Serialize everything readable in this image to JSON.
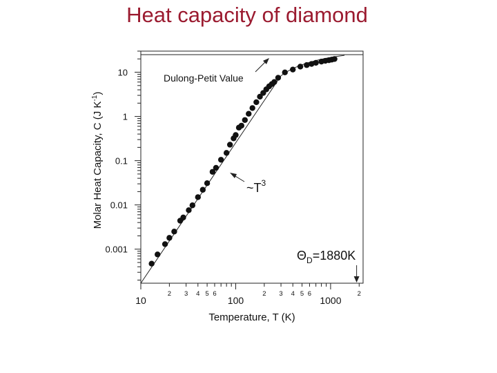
{
  "page": {
    "title": "Heat capacity of diamond"
  },
  "chart_data": {
    "type": "scatter",
    "title": "",
    "xlabel": "Temperature, T (K)",
    "ylabel": "Molar Heat Capacity, C  (J K-1)",
    "ylabel_parts": {
      "main": "Molar Heat Capacity, C  (J K",
      "sup": "-1",
      "close": ")"
    },
    "x_scale": "log",
    "y_scale": "log",
    "xlim": [
      10,
      2200
    ],
    "ylim": [
      0.00017,
      30
    ],
    "grid": false,
    "x_major_ticks": [
      {
        "value": 10,
        "label": "10"
      },
      {
        "value": 100,
        "label": "100"
      },
      {
        "value": 1000,
        "label": "1000"
      }
    ],
    "x_minor_labels": [
      {
        "value": 20,
        "label": "2"
      },
      {
        "value": 30,
        "label": "3"
      },
      {
        "value": 40,
        "label": "4"
      },
      {
        "value": 50,
        "label": "5"
      },
      {
        "value": 60,
        "label": "6"
      },
      {
        "value": 200,
        "label": "2"
      },
      {
        "value": 300,
        "label": "3"
      },
      {
        "value": 400,
        "label": "4"
      },
      {
        "value": 500,
        "label": "5"
      },
      {
        "value": 600,
        "label": "6"
      },
      {
        "value": 2000,
        "label": "2"
      }
    ],
    "y_major_ticks": [
      {
        "value": 10,
        "label": "10"
      },
      {
        "value": 1,
        "label": "1"
      },
      {
        "value": 0.1,
        "label": "0.1"
      },
      {
        "value": 0.01,
        "label": "0.01"
      },
      {
        "value": 0.001,
        "label": "0.001"
      }
    ],
    "series": [
      {
        "points": [
          [
            13,
            0.00047
          ],
          [
            15,
            0.00076
          ],
          [
            18,
            0.0013
          ],
          [
            20,
            0.0018
          ],
          [
            22.5,
            0.0025
          ],
          [
            26,
            0.0044
          ],
          [
            28,
            0.0052
          ],
          [
            32,
            0.0076
          ],
          [
            35,
            0.0098
          ],
          [
            40,
            0.015
          ],
          [
            45,
            0.022
          ],
          [
            50,
            0.031
          ],
          [
            57,
            0.056
          ],
          [
            62,
            0.069
          ],
          [
            70,
            0.105
          ],
          [
            80,
            0.15
          ],
          [
            87,
            0.23
          ],
          [
            95,
            0.32
          ],
          [
            100,
            0.38
          ],
          [
            108,
            0.56
          ],
          [
            115,
            0.62
          ],
          [
            125,
            0.83
          ],
          [
            137,
            1.15
          ],
          [
            150,
            1.55
          ],
          [
            165,
            2.1
          ],
          [
            180,
            2.8
          ],
          [
            195,
            3.4
          ],
          [
            210,
            4.1
          ],
          [
            225,
            4.8
          ],
          [
            240,
            5.4
          ],
          [
            255,
            6.0
          ],
          [
            280,
            7.5
          ],
          [
            330,
            9.9
          ],
          [
            400,
            11.5
          ],
          [
            480,
            13.4
          ],
          [
            560,
            14.5
          ],
          [
            630,
            15.4
          ],
          [
            700,
            16.3
          ],
          [
            800,
            17.4
          ],
          [
            880,
            18.1
          ],
          [
            960,
            18.7
          ],
          [
            1030,
            19.3
          ],
          [
            1100,
            19.9
          ]
        ]
      }
    ],
    "t3_line": {
      "x": [
        10,
        300
      ],
      "y": [
        0.00017,
        8.3
      ]
    },
    "dulong_petit_value": 24.9,
    "theta_d_value": 1880,
    "annotations": {
      "dulong_petit": "Dulong-Petit Value",
      "t3": {
        "base": "~T",
        "sup": "3"
      },
      "theta": {
        "symbol": "Θ",
        "sub": "D",
        "rest": "=1880K"
      }
    }
  }
}
